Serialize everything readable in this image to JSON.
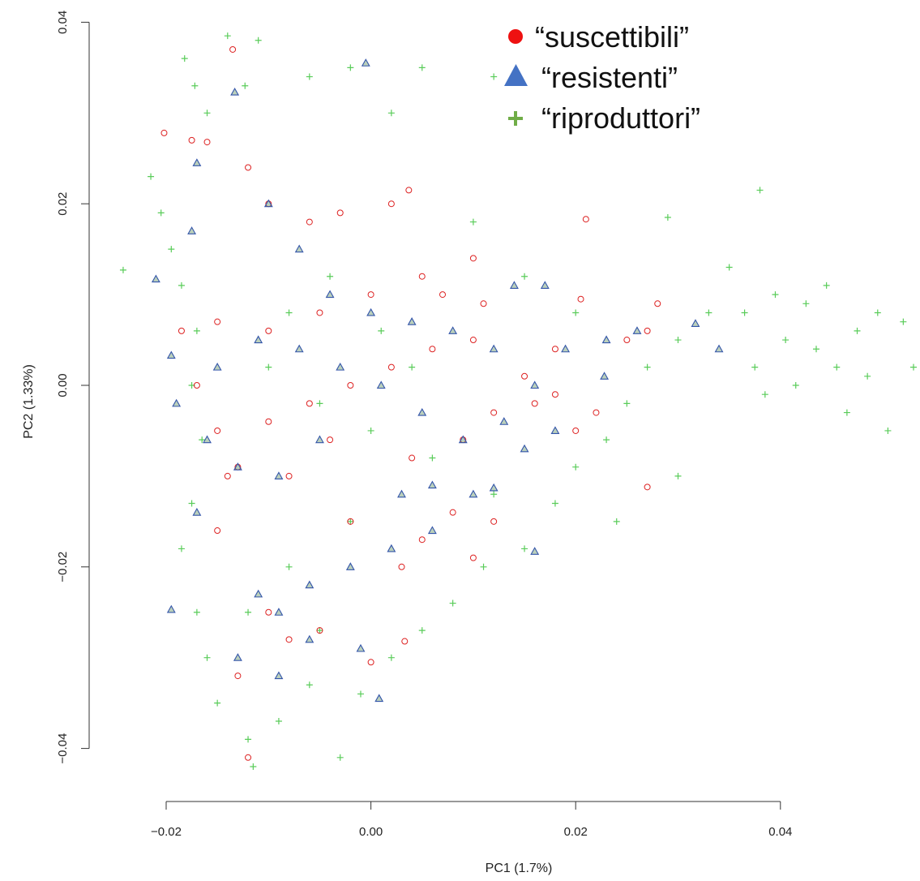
{
  "chart_data": {
    "type": "scatter",
    "xlabel": "PC1 (1.7%)",
    "ylabel": "PC2 (1.33%)",
    "xlim": [
      -0.0263,
      0.0538
    ],
    "ylim": [
      -0.0455,
      0.04
    ],
    "x_ticks": [
      {
        "value": -0.02,
        "label": "−0.02"
      },
      {
        "value": 0.0,
        "label": "0.00"
      },
      {
        "value": 0.02,
        "label": "0.02"
      },
      {
        "value": 0.04,
        "label": "0.04"
      }
    ],
    "y_ticks": [
      {
        "value": -0.04,
        "label": "−0.04"
      },
      {
        "value": -0.02,
        "label": "−0.02"
      },
      {
        "value": 0.0,
        "label": "0.00"
      },
      {
        "value": 0.02,
        "label": "0.02"
      },
      {
        "value": 0.04,
        "label": "0.04"
      }
    ],
    "legend": {
      "position": "top-right",
      "entries": [
        {
          "label": "“suscettibili”",
          "marker": "filled-circle",
          "color": "#ee1111"
        },
        {
          "label": "“resistenti”",
          "marker": "filled-triangle",
          "color": "#4472c4"
        },
        {
          "label": "“riproduttori”",
          "marker": "plus",
          "color": "#70ad47"
        }
      ]
    },
    "series": [
      {
        "marker": "plus",
        "color": "#22bb22",
        "points": [
          [
            -0.0242,
            0.0127
          ],
          [
            -0.0215,
            0.023
          ],
          [
            -0.0182,
            0.036
          ],
          [
            -0.0172,
            0.033
          ],
          [
            -0.016,
            0.03
          ],
          [
            -0.014,
            0.0385
          ],
          [
            -0.0123,
            0.033
          ],
          [
            -0.011,
            0.038
          ],
          [
            -0.0205,
            0.019
          ],
          [
            -0.0195,
            0.015
          ],
          [
            -0.0185,
            0.011
          ],
          [
            -0.017,
            0.006
          ],
          [
            -0.0175,
            0.0
          ],
          [
            -0.0165,
            -0.006
          ],
          [
            -0.0175,
            -0.013
          ],
          [
            -0.0185,
            -0.018
          ],
          [
            -0.017,
            -0.025
          ],
          [
            -0.016,
            -0.03
          ],
          [
            -0.015,
            -0.035
          ],
          [
            -0.012,
            -0.039
          ],
          [
            -0.0115,
            -0.042
          ],
          [
            -0.009,
            -0.037
          ],
          [
            -0.006,
            -0.033
          ],
          [
            -0.003,
            -0.041
          ],
          [
            -0.001,
            -0.034
          ],
          [
            0.002,
            -0.03
          ],
          [
            0.005,
            -0.027
          ],
          [
            0.008,
            -0.024
          ],
          [
            0.011,
            -0.02
          ],
          [
            0.015,
            -0.018
          ],
          [
            0.018,
            -0.013
          ],
          [
            0.02,
            -0.009
          ],
          [
            0.023,
            -0.006
          ],
          [
            0.025,
            -0.002
          ],
          [
            0.027,
            0.002
          ],
          [
            0.03,
            0.005
          ],
          [
            0.033,
            0.008
          ],
          [
            0.035,
            0.013
          ],
          [
            0.0365,
            0.008
          ],
          [
            0.0375,
            0.002
          ],
          [
            0.0385,
            -0.001
          ],
          [
            0.0395,
            0.01
          ],
          [
            0.0405,
            0.005
          ],
          [
            0.0415,
            0.0
          ],
          [
            0.0425,
            0.009
          ],
          [
            0.0435,
            0.004
          ],
          [
            0.0445,
            0.011
          ],
          [
            0.0455,
            0.002
          ],
          [
            0.0465,
            -0.003
          ],
          [
            0.0475,
            0.006
          ],
          [
            0.0485,
            0.001
          ],
          [
            0.0495,
            0.008
          ],
          [
            0.0505,
            -0.005
          ],
          [
            0.052,
            0.007
          ],
          [
            0.053,
            0.002
          ],
          [
            0.038,
            0.0215
          ],
          [
            0.029,
            0.0185
          ],
          [
            0.024,
            -0.015
          ],
          [
            0.03,
            -0.01
          ],
          [
            0.012,
            0.034
          ],
          [
            0.005,
            0.035
          ],
          [
            0.002,
            0.03
          ],
          [
            -0.002,
            0.035
          ],
          [
            -0.006,
            0.034
          ],
          [
            0.01,
            0.018
          ],
          [
            0.015,
            0.012
          ],
          [
            0.02,
            0.008
          ],
          [
            0.012,
            -0.012
          ],
          [
            0.006,
            -0.008
          ],
          [
            0.0,
            -0.005
          ],
          [
            -0.005,
            -0.002
          ],
          [
            -0.01,
            0.002
          ],
          [
            -0.008,
            0.008
          ],
          [
            -0.004,
            0.012
          ],
          [
            0.001,
            0.006
          ],
          [
            0.004,
            0.002
          ],
          [
            -0.002,
            -0.015
          ],
          [
            -0.008,
            -0.02
          ],
          [
            -0.012,
            -0.025
          ],
          [
            -0.005,
            -0.027
          ]
        ]
      },
      {
        "marker": "circle",
        "color": "#dd2222",
        "points": [
          [
            -0.0202,
            0.0278
          ],
          [
            -0.0135,
            0.037
          ],
          [
            -0.0175,
            0.027
          ],
          [
            -0.016,
            0.0268
          ],
          [
            -0.012,
            0.024
          ],
          [
            -0.01,
            0.02
          ],
          [
            -0.006,
            0.018
          ],
          [
            -0.003,
            0.019
          ],
          [
            0.002,
            0.02
          ],
          [
            0.0037,
            0.0215
          ],
          [
            0.021,
            0.0183
          ],
          [
            0.01,
            0.014
          ],
          [
            0.005,
            0.012
          ],
          [
            0.0,
            0.01
          ],
          [
            -0.005,
            0.008
          ],
          [
            -0.01,
            0.006
          ],
          [
            -0.015,
            0.007
          ],
          [
            -0.0185,
            0.006
          ],
          [
            -0.017,
            0.0
          ],
          [
            -0.015,
            -0.005
          ],
          [
            -0.013,
            -0.009
          ],
          [
            -0.01,
            -0.004
          ],
          [
            -0.006,
            -0.002
          ],
          [
            -0.002,
            0.0
          ],
          [
            0.002,
            0.002
          ],
          [
            0.006,
            0.004
          ],
          [
            0.01,
            0.005
          ],
          [
            0.015,
            0.001
          ],
          [
            0.018,
            -0.001
          ],
          [
            0.02,
            -0.005
          ],
          [
            0.022,
            -0.003
          ],
          [
            0.025,
            0.005
          ],
          [
            0.027,
            0.006
          ],
          [
            0.028,
            0.009
          ],
          [
            0.0205,
            0.0095
          ],
          [
            0.027,
            -0.0112
          ],
          [
            0.012,
            -0.015
          ],
          [
            0.01,
            -0.019
          ],
          [
            0.005,
            -0.017
          ],
          [
            0.003,
            -0.02
          ],
          [
            0.008,
            -0.014
          ],
          [
            -0.002,
            -0.015
          ],
          [
            -0.005,
            -0.027
          ],
          [
            -0.008,
            -0.028
          ],
          [
            -0.01,
            -0.025
          ],
          [
            -0.013,
            -0.032
          ],
          [
            -0.012,
            -0.041
          ],
          [
            0.0,
            -0.0305
          ],
          [
            0.0033,
            -0.0282
          ],
          [
            -0.015,
            -0.016
          ],
          [
            -0.014,
            -0.01
          ],
          [
            -0.008,
            -0.01
          ],
          [
            -0.004,
            -0.006
          ],
          [
            0.004,
            -0.008
          ],
          [
            0.009,
            -0.006
          ],
          [
            0.012,
            -0.003
          ],
          [
            0.016,
            -0.002
          ],
          [
            0.018,
            0.004
          ],
          [
            0.011,
            0.009
          ],
          [
            0.007,
            0.01
          ]
        ]
      },
      {
        "marker": "triangle",
        "color": "#3355aa",
        "points": [
          [
            -0.0005,
            0.0355
          ],
          [
            -0.0133,
            0.0323
          ],
          [
            -0.017,
            0.0245
          ],
          [
            -0.021,
            0.0117
          ],
          [
            -0.0195,
            0.0033
          ],
          [
            -0.0175,
            0.017
          ],
          [
            -0.01,
            0.02
          ],
          [
            -0.007,
            0.015
          ],
          [
            -0.004,
            0.01
          ],
          [
            0.0,
            0.008
          ],
          [
            0.004,
            0.007
          ],
          [
            0.008,
            0.006
          ],
          [
            0.012,
            0.004
          ],
          [
            0.014,
            0.011
          ],
          [
            0.017,
            0.011
          ],
          [
            0.023,
            0.005
          ],
          [
            0.026,
            0.006
          ],
          [
            0.0317,
            0.0068
          ],
          [
            0.034,
            0.004
          ],
          [
            0.0228,
            0.001
          ],
          [
            0.018,
            -0.005
          ],
          [
            0.015,
            -0.007
          ],
          [
            0.012,
            -0.0113
          ],
          [
            0.016,
            -0.0183
          ],
          [
            0.01,
            -0.012
          ],
          [
            0.006,
            -0.011
          ],
          [
            0.002,
            -0.018
          ],
          [
            -0.002,
            -0.02
          ],
          [
            -0.006,
            -0.022
          ],
          [
            -0.009,
            -0.025
          ],
          [
            -0.011,
            -0.023
          ],
          [
            -0.013,
            -0.03
          ],
          [
            -0.009,
            -0.032
          ],
          [
            -0.0195,
            -0.0247
          ],
          [
            -0.017,
            -0.014
          ],
          [
            -0.013,
            -0.009
          ],
          [
            -0.016,
            -0.006
          ],
          [
            -0.019,
            -0.002
          ],
          [
            -0.015,
            0.002
          ],
          [
            -0.011,
            0.005
          ],
          [
            -0.007,
            0.004
          ],
          [
            -0.003,
            0.002
          ],
          [
            0.001,
            0.0
          ],
          [
            0.005,
            -0.003
          ],
          [
            0.009,
            -0.006
          ],
          [
            0.013,
            -0.004
          ],
          [
            0.016,
            0.0
          ],
          [
            0.019,
            0.004
          ],
          [
            -0.005,
            -0.006
          ],
          [
            -0.009,
            -0.01
          ],
          [
            -0.001,
            -0.029
          ],
          [
            0.0008,
            -0.0345
          ],
          [
            -0.006,
            -0.028
          ],
          [
            0.003,
            -0.012
          ],
          [
            0.006,
            -0.016
          ]
        ]
      }
    ]
  }
}
